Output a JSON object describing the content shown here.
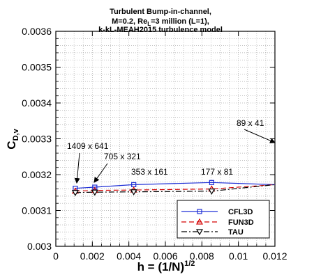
{
  "chart_data": {
    "type": "line",
    "title_lines": [
      "Turbulent Bump-in-channel,",
      "M=0.2, Re",
      "=3 million (L=1),",
      "k-kL-MEAH2015 turbulence model"
    ],
    "title_re_subscript": "L",
    "xlabel": "h = (1/N)",
    "xlabel_superscript": "1/2",
    "ylabel": "C",
    "ylabel_subscript": "D,v",
    "xlim": [
      0,
      0.012
    ],
    "ylim": [
      0.003,
      0.0036
    ],
    "x_ticks": [
      "0",
      "0.002",
      "0.004",
      "0.006",
      "0.008",
      "0.01",
      "0.012"
    ],
    "x_tick_values": [
      0,
      0.002,
      0.004,
      0.006,
      0.008,
      0.01,
      0.012
    ],
    "y_ticks": [
      "0.003",
      "0.0031",
      "0.0032",
      "0.0033",
      "0.0034",
      "0.0035",
      "0.0036"
    ],
    "y_tick_values": [
      0.003,
      0.0031,
      0.0032,
      0.0033,
      0.0034,
      0.0035,
      0.0036
    ],
    "grid": true,
    "legend_position": "bottom-right",
    "series": [
      {
        "name": "CFL3D",
        "color": "#1f2fd6",
        "marker": "square",
        "dash": "solid",
        "x": [
          0.001067,
          0.002134,
          0.004268,
          0.008536,
          0.012
        ],
        "y": [
          0.003162,
          0.003165,
          0.003172,
          0.003178,
          0.003172
        ]
      },
      {
        "name": "FUN3D",
        "color": "#d40000",
        "marker": "triangle-up",
        "dash": "dashed",
        "x": [
          0.001067,
          0.002134,
          0.004268,
          0.008536,
          0.012
        ],
        "y": [
          0.003154,
          0.003156,
          0.003157,
          0.00316,
          0.003172
        ]
      },
      {
        "name": "TAU",
        "color": "#000000",
        "marker": "triangle-down",
        "dash": "dashdot",
        "x": [
          0.001067,
          0.002134,
          0.004268,
          0.008536,
          0.012
        ],
        "y": [
          0.00315,
          0.003151,
          0.003152,
          0.003154,
          0.003172
        ]
      }
    ],
    "annotations": [
      {
        "text": "1409 x 641",
        "point": [
          0.001067,
          0.003162
        ]
      },
      {
        "text": "705 x 321",
        "point": [
          0.002134,
          0.003165
        ]
      },
      {
        "text": "353 x 161",
        "point": null
      },
      {
        "text": "177 x 81",
        "point": null
      },
      {
        "text": "89 x 41",
        "point": [
          0.012,
          0.003293
        ]
      }
    ]
  }
}
